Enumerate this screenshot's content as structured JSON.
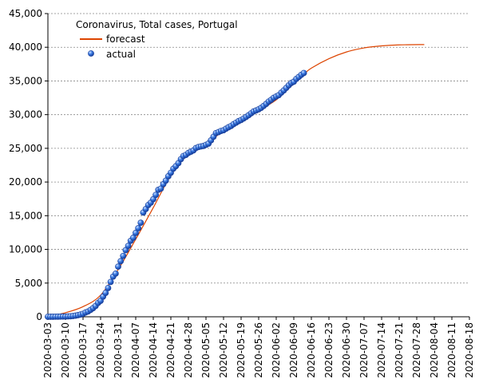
{
  "chart_data": {
    "type": "line",
    "title": "Coronavirus, Total cases, Portugal",
    "xlabel": "",
    "ylabel": "",
    "ylim": [
      0,
      45000
    ],
    "y_ticks": [
      0,
      5000,
      10000,
      15000,
      20000,
      25000,
      30000,
      35000,
      40000,
      45000
    ],
    "y_tick_labels": [
      "0",
      "5,000",
      "10,000",
      "15,000",
      "20,000",
      "25,000",
      "30,000",
      "35,000",
      "40,000",
      "45,000"
    ],
    "x_start": "2020-03-03",
    "x_end": "2020-08-18",
    "x_tick_labels": [
      "2020-03-03",
      "2020-03-10",
      "2020-03-17",
      "2020-03-24",
      "2020-03-31",
      "2020-04-07",
      "2020-04-14",
      "2020-04-21",
      "2020-04-28",
      "2020-05-05",
      "2020-05-12",
      "2020-05-19",
      "2020-05-26",
      "2020-06-02",
      "2020-06-09",
      "2020-06-16",
      "2020-06-23",
      "2020-06-30",
      "2020-07-07",
      "2020-07-14",
      "2020-07-21",
      "2020-07-28",
      "2020-08-04",
      "2020-08-11",
      "2020-08-18"
    ],
    "grid": "horizontal-dashed",
    "legend_position": "top-left",
    "colors": {
      "forecast": "#dd4400",
      "actual": "#2255cc"
    },
    "series": [
      {
        "name": "forecast",
        "kind": "line",
        "x": [
          "2020-03-03",
          "2020-03-10",
          "2020-03-17",
          "2020-03-24",
          "2020-03-31",
          "2020-04-07",
          "2020-04-14",
          "2020-04-21",
          "2020-04-28",
          "2020-05-05",
          "2020-05-12",
          "2020-05-19",
          "2020-05-26",
          "2020-06-02",
          "2020-06-09",
          "2020-06-13",
          "2020-06-16",
          "2020-06-23",
          "2020-06-30",
          "2020-07-07",
          "2020-07-14",
          "2020-07-21",
          "2020-07-31"
        ],
        "y": [
          50,
          600,
          1500,
          3200,
          7000,
          11500,
          16200,
          21000,
          24200,
          25600,
          27600,
          29100,
          30600,
          32200,
          34600,
          36000,
          36900,
          38300,
          39300,
          39900,
          40200,
          40350,
          40400
        ]
      },
      {
        "name": "actual",
        "kind": "points",
        "x": [
          "2020-03-03",
          "2020-03-04",
          "2020-03-05",
          "2020-03-06",
          "2020-03-07",
          "2020-03-08",
          "2020-03-09",
          "2020-03-10",
          "2020-03-11",
          "2020-03-12",
          "2020-03-13",
          "2020-03-14",
          "2020-03-15",
          "2020-03-16",
          "2020-03-17",
          "2020-03-18",
          "2020-03-19",
          "2020-03-20",
          "2020-03-21",
          "2020-03-22",
          "2020-03-23",
          "2020-03-24",
          "2020-03-25",
          "2020-03-26",
          "2020-03-27",
          "2020-03-28",
          "2020-03-29",
          "2020-03-30",
          "2020-03-31",
          "2020-04-01",
          "2020-04-02",
          "2020-04-03",
          "2020-04-04",
          "2020-04-05",
          "2020-04-06",
          "2020-04-07",
          "2020-04-08",
          "2020-04-09",
          "2020-04-10",
          "2020-04-11",
          "2020-04-12",
          "2020-04-13",
          "2020-04-14",
          "2020-04-15",
          "2020-04-16",
          "2020-04-17",
          "2020-04-18",
          "2020-04-19",
          "2020-04-20",
          "2020-04-21",
          "2020-04-22",
          "2020-04-23",
          "2020-04-24",
          "2020-04-25",
          "2020-04-26",
          "2020-04-27",
          "2020-04-28",
          "2020-04-29",
          "2020-04-30",
          "2020-05-01",
          "2020-05-02",
          "2020-05-03",
          "2020-05-04",
          "2020-05-05",
          "2020-05-06",
          "2020-05-07",
          "2020-05-08",
          "2020-05-09",
          "2020-05-10",
          "2020-05-11",
          "2020-05-12",
          "2020-05-13",
          "2020-05-14",
          "2020-05-15",
          "2020-05-16",
          "2020-05-17",
          "2020-05-18",
          "2020-05-19",
          "2020-05-20",
          "2020-05-21",
          "2020-05-22",
          "2020-05-23",
          "2020-05-24",
          "2020-05-25",
          "2020-05-26",
          "2020-05-27",
          "2020-05-28",
          "2020-05-29",
          "2020-05-30",
          "2020-05-31",
          "2020-06-01",
          "2020-06-02",
          "2020-06-03",
          "2020-06-04",
          "2020-06-05",
          "2020-06-06",
          "2020-06-07",
          "2020-06-08",
          "2020-06-09",
          "2020-06-10",
          "2020-06-11",
          "2020-06-12",
          "2020-06-13"
        ],
        "y": [
          2,
          5,
          8,
          13,
          21,
          30,
          39,
          41,
          59,
          78,
          112,
          169,
          245,
          331,
          448,
          642,
          785,
          1020,
          1280,
          1600,
          2060,
          2362,
          2995,
          3544,
          4268,
          5170,
          5962,
          6408,
          7443,
          8251,
          9034,
          9886,
          10524,
          11278,
          11730,
          12442,
          13141,
          13956,
          15472,
          15987,
          16585,
          16934,
          17448,
          18091,
          18841,
          19022,
          19685,
          20206,
          20863,
          21379,
          21982,
          22353,
          22797,
          23392,
          23864,
          24027,
          24322,
          24505,
          24692,
          25045,
          25190,
          25282,
          25351,
          25524,
          25702,
          26182,
          26715,
          27268,
          27406,
          27581,
          27679,
          27913,
          28132,
          28319,
          28583,
          28810,
          29036,
          29209,
          29432,
          29660,
          29912,
          30200,
          30471,
          30623,
          30788,
          31007,
          31292,
          31596,
          31946,
          32203,
          32500,
          32700,
          32895,
          33261,
          33592,
          33969,
          34351,
          34693,
          34885,
          35306,
          35600,
          35910,
          36180
        ]
      }
    ]
  }
}
